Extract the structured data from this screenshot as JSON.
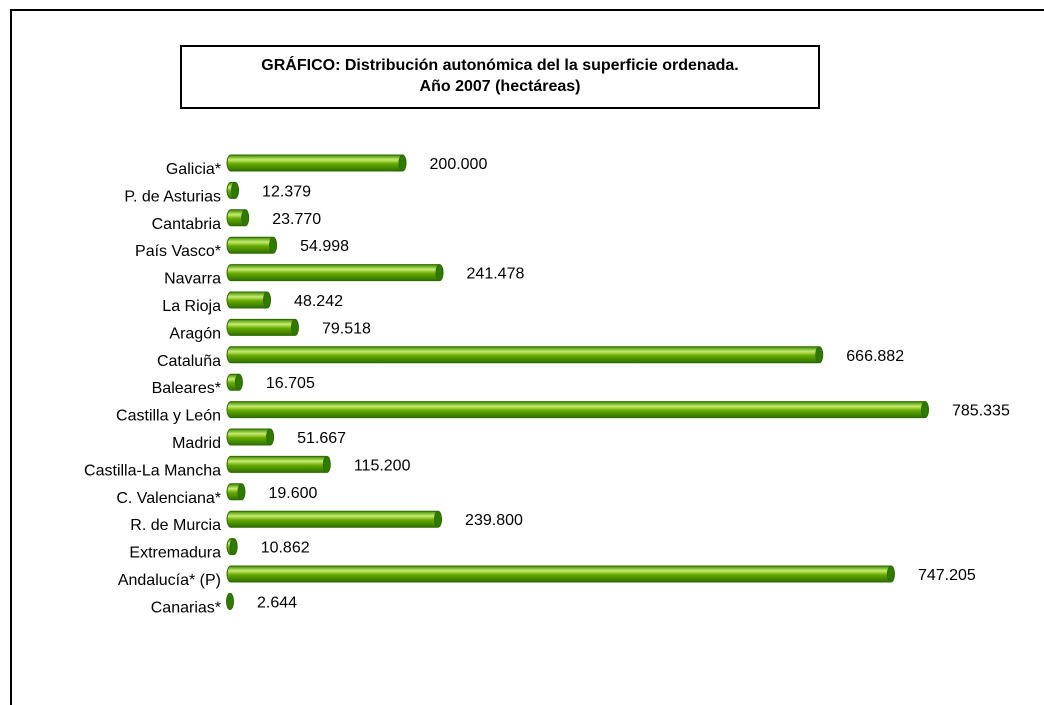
{
  "chart_data": {
    "type": "bar",
    "orientation": "horizontal",
    "title": "GRÁFICO: Distribución autonómica del la superficie ordenada.",
    "subtitle": "Año 2007 (hectáreas)",
    "categories": [
      "Galicia*",
      "P. de Asturias",
      "Cantabria",
      "País Vasco*",
      "Navarra",
      "La Rioja",
      "Aragón",
      "Cataluña",
      "Baleares*",
      "Castilla y León",
      "Madrid",
      "Castilla-La Mancha",
      "C. Valenciana*",
      "R. de Murcia",
      "Extremadura",
      "Andalucía* (P)",
      "Canarias*"
    ],
    "values": [
      200000,
      12379,
      23770,
      54998,
      241478,
      48242,
      79518,
      666882,
      16705,
      785335,
      51667,
      115200,
      19600,
      239800,
      10862,
      747205,
      2644
    ],
    "value_labels": [
      "200.000",
      "12.379",
      "23.770",
      "54.998",
      "241.478",
      "48.242",
      "79.518",
      "666.882",
      "16.705",
      "785.335",
      "51.667",
      "115.200",
      "19.600",
      "239.800",
      "10.862",
      "747.205",
      "2.644"
    ],
    "xlim": [
      0,
      785335
    ],
    "grid": false,
    "legend": "none",
    "bar_color": "#66aa00",
    "bar_highlight": "#c8ec70",
    "bar_edge": "#2d6a00"
  }
}
